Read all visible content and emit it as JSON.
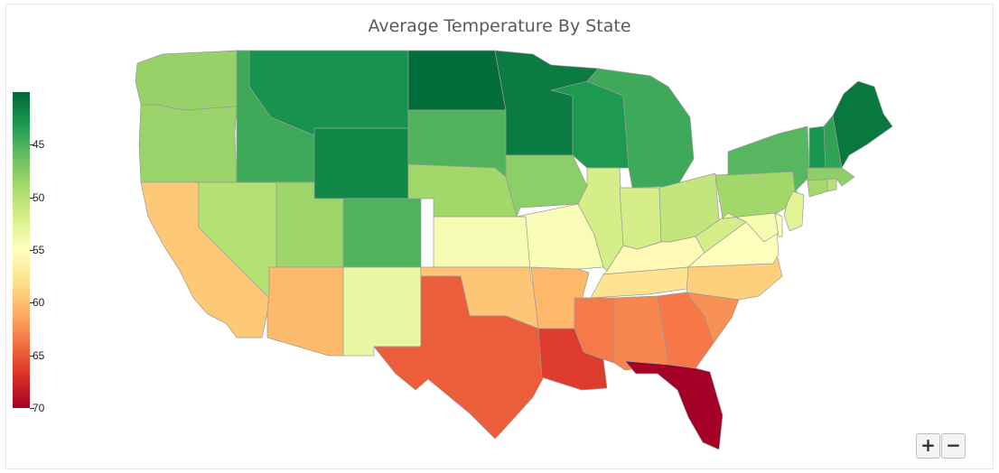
{
  "chart_data": {
    "type": "choropleth",
    "title": "Average Temperature By State",
    "colorscale": {
      "min": 40,
      "max": 70,
      "ticks": [
        45,
        50,
        55,
        60,
        65,
        70
      ],
      "colors": [
        "#006837",
        "#1a9850",
        "#66bd63",
        "#a6d96a",
        "#d9ef8b",
        "#ffffbf",
        "#fee08b",
        "#fdae61",
        "#f46d43",
        "#d73027",
        "#a50026"
      ]
    },
    "states": [
      {
        "state": "Washington",
        "value": 48.3
      },
      {
        "state": "Oregon",
        "value": 48.4
      },
      {
        "state": "California",
        "value": 59.4
      },
      {
        "state": "Nevada",
        "value": 49.9
      },
      {
        "state": "Idaho",
        "value": 44.4
      },
      {
        "state": "Montana",
        "value": 42.7
      },
      {
        "state": "Wyoming",
        "value": 42.0
      },
      {
        "state": "Utah",
        "value": 48.6
      },
      {
        "state": "Arizona",
        "value": 60.3
      },
      {
        "state": "Colorado",
        "value": 45.1
      },
      {
        "state": "New Mexico",
        "value": 53.4
      },
      {
        "state": "North Dakota",
        "value": 40.4
      },
      {
        "state": "South Dakota",
        "value": 45.2
      },
      {
        "state": "Nebraska",
        "value": 48.8
      },
      {
        "state": "Kansas",
        "value": 54.3
      },
      {
        "state": "Oklahoma",
        "value": 59.6
      },
      {
        "state": "Texas",
        "value": 64.8
      },
      {
        "state": "Minnesota",
        "value": 41.2
      },
      {
        "state": "Iowa",
        "value": 47.8
      },
      {
        "state": "Missouri",
        "value": 54.5
      },
      {
        "state": "Arkansas",
        "value": 60.4
      },
      {
        "state": "Louisiana",
        "value": 66.4
      },
      {
        "state": "Wisconsin",
        "value": 43.1
      },
      {
        "state": "Illinois",
        "value": 51.8
      },
      {
        "state": "Michigan",
        "value": 44.4
      },
      {
        "state": "Indiana",
        "value": 51.7
      },
      {
        "state": "Ohio",
        "value": 50.7
      },
      {
        "state": "Kentucky",
        "value": 55.6
      },
      {
        "state": "Tennessee",
        "value": 57.6
      },
      {
        "state": "Mississippi",
        "value": 63.4
      },
      {
        "state": "Alabama",
        "value": 62.8
      },
      {
        "state": "Georgia",
        "value": 63.5
      },
      {
        "state": "Florida",
        "value": 70.7
      },
      {
        "state": "South Carolina",
        "value": 62.4
      },
      {
        "state": "North Carolina",
        "value": 59.0
      },
      {
        "state": "Virginia",
        "value": 55.1
      },
      {
        "state": "West Virginia",
        "value": 51.8
      },
      {
        "state": "Pennsylvania",
        "value": 48.8
      },
      {
        "state": "New York",
        "value": 45.4
      },
      {
        "state": "Maryland",
        "value": 54.2
      },
      {
        "state": "Delaware",
        "value": 55.3
      },
      {
        "state": "New Jersey",
        "value": 52.7
      },
      {
        "state": "Connecticut",
        "value": 49.0
      },
      {
        "state": "Rhode Island",
        "value": 50.1
      },
      {
        "state": "Massachusetts",
        "value": 47.9
      },
      {
        "state": "Vermont",
        "value": 42.9
      },
      {
        "state": "New Hampshire",
        "value": 43.8
      },
      {
        "state": "Maine",
        "value": 41.0
      }
    ]
  },
  "controls": {
    "zoom_in_label": "+",
    "zoom_out_label": "−"
  }
}
